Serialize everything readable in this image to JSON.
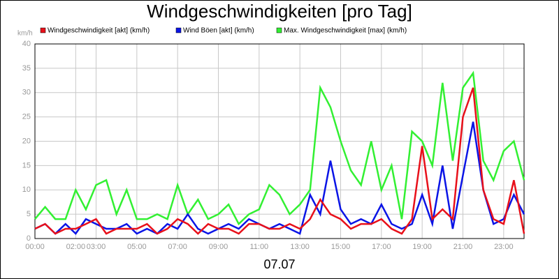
{
  "chart_data": {
    "type": "line",
    "title": "Windgeschwindigkeiten [pro Tag]",
    "ylabel": "km/h",
    "xlabel": "07.07",
    "x": [
      0,
      0.5,
      1,
      1.5,
      2,
      2.5,
      3,
      3.5,
      4,
      4.5,
      5,
      5.5,
      6,
      6.5,
      7,
      7.5,
      8,
      8.5,
      9,
      9.5,
      10,
      10.5,
      11,
      11.5,
      12,
      12.5,
      13,
      13.5,
      14,
      14.5,
      15,
      15.5,
      16,
      16.5,
      17,
      17.5,
      18,
      18.5,
      19,
      19.5,
      20,
      20.5,
      21,
      21.5,
      22,
      22.5,
      23,
      23.5,
      24
    ],
    "series": [
      {
        "name": "Windgeschwindigkeit [akt] (km/h)",
        "color": "#e8101a",
        "values": [
          2,
          3,
          1,
          2,
          2,
          3,
          4,
          1,
          2,
          2,
          2,
          3,
          1,
          2,
          4,
          3,
          1,
          3,
          2,
          2,
          1,
          3,
          3,
          2,
          2,
          3,
          2,
          4,
          8,
          5,
          4,
          2,
          3,
          3,
          4,
          2,
          1,
          4,
          19,
          4,
          6,
          4,
          25,
          31,
          10,
          4,
          3,
          12,
          1
        ]
      },
      {
        "name": "Wind Böen [akt] (km/h)",
        "color": "#0a14e6",
        "values": [
          2,
          3,
          1,
          3,
          1,
          4,
          3,
          2,
          2,
          3,
          1,
          2,
          1,
          3,
          2,
          5,
          2,
          1,
          2,
          3,
          2,
          4,
          3,
          2,
          3,
          2,
          1,
          9,
          5,
          16,
          6,
          3,
          4,
          3,
          7,
          3,
          2,
          3,
          9,
          3,
          15,
          2,
          13,
          24,
          10,
          3,
          4,
          9,
          5
        ]
      },
      {
        "name": "Max. Windgeschwindigkeit [max] (km/h)",
        "color": "#32f032",
        "values": [
          4,
          6.5,
          4,
          4,
          10,
          6,
          11,
          12,
          5,
          10,
          4,
          4,
          5,
          4,
          11,
          5,
          8,
          4,
          5,
          7,
          3,
          5,
          6,
          11,
          9,
          5,
          7,
          10,
          31,
          27,
          20,
          14,
          11,
          20,
          10,
          15,
          4,
          22,
          20,
          15,
          32,
          16,
          31,
          34,
          16,
          12,
          18,
          20,
          12
        ]
      }
    ],
    "xlim": [
      0,
      24
    ],
    "xticks": [
      {
        "value": 0,
        "label": "00:00"
      },
      {
        "value": 2,
        "label": "02:00"
      },
      {
        "value": 3,
        "label": "03:00"
      },
      {
        "value": 5,
        "label": "05:00"
      },
      {
        "value": 7,
        "label": "07:00"
      },
      {
        "value": 9,
        "label": "09:00"
      },
      {
        "value": 11,
        "label": "11:00"
      },
      {
        "value": 13,
        "label": "13:00"
      },
      {
        "value": 15,
        "label": "15:00"
      },
      {
        "value": 17,
        "label": "17:00"
      },
      {
        "value": 19,
        "label": "19:00"
      },
      {
        "value": 21,
        "label": "21:00"
      },
      {
        "value": 23,
        "label": "23:00"
      }
    ],
    "ylim": [
      0,
      40
    ],
    "yticks": [
      0,
      5,
      10,
      15,
      20,
      25,
      30,
      35,
      40
    ],
    "grid": true
  }
}
